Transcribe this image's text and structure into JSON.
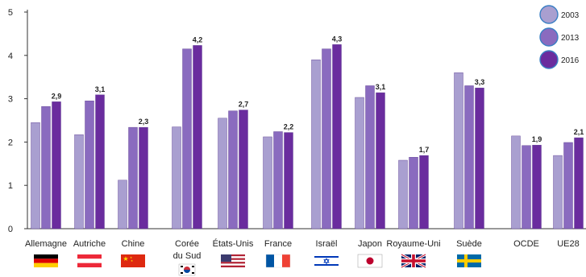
{
  "chart_data": {
    "type": "bar",
    "categories": [
      {
        "lines": [
          "Allemagne"
        ],
        "flag": "flag-germany"
      },
      {
        "lines": [
          "Autriche"
        ],
        "flag": "flag-austria"
      },
      {
        "lines": [
          "Chine"
        ],
        "flag": "flag-china"
      },
      {
        "lines": [
          "Corée",
          "du Sud"
        ],
        "flag": "flag-south-korea"
      },
      {
        "lines": [
          "États-Unis"
        ],
        "flag": "flag-united-states"
      },
      {
        "lines": [
          "France"
        ],
        "flag": "flag-france"
      },
      {
        "lines": [
          "Israël"
        ],
        "flag": "flag-israel"
      },
      {
        "lines": [
          "Japon"
        ],
        "flag": "flag-japan"
      },
      {
        "lines": [
          "Royaume-Uni"
        ],
        "flag": "flag-united-kingdom"
      },
      {
        "lines": [
          "Suède"
        ],
        "flag": "flag-sweden"
      },
      {
        "lines": [
          "OCDE"
        ],
        "flag": ""
      },
      {
        "lines": [
          "UE28"
        ],
        "flag": ""
      }
    ],
    "series": [
      {
        "name": "2003",
        "color": "#a99fd0",
        "values": [
          2.45,
          2.17,
          1.12,
          2.35,
          2.55,
          2.12,
          3.9,
          3.03,
          1.58,
          3.6,
          2.14,
          1.69
        ]
      },
      {
        "name": "2013",
        "color": "#8a6bbf",
        "values": [
          2.82,
          2.95,
          2.34,
          4.15,
          2.72,
          2.24,
          4.15,
          3.3,
          1.65,
          3.3,
          1.92,
          1.99
        ]
      },
      {
        "name": "2016",
        "color": "#6a2c9e",
        "values": [
          2.93,
          3.09,
          2.34,
          4.23,
          2.74,
          2.22,
          4.25,
          3.14,
          1.69,
          3.25,
          1.93,
          2.1
        ]
      }
    ],
    "data_labels": [
      "2,9",
      "3,1",
      "2,3",
      "4,2",
      "2,7",
      "2,2",
      "4,3",
      "3,1",
      "1,7",
      "3,3",
      "1,9",
      "2,1"
    ],
    "y_ticks": [
      "0",
      "1",
      "2",
      "3",
      "4",
      "5"
    ],
    "ylim": [
      0,
      5
    ],
    "legend": {
      "position": "top-right"
    },
    "grid": false,
    "title": "",
    "xlabel": "",
    "ylabel": ""
  }
}
